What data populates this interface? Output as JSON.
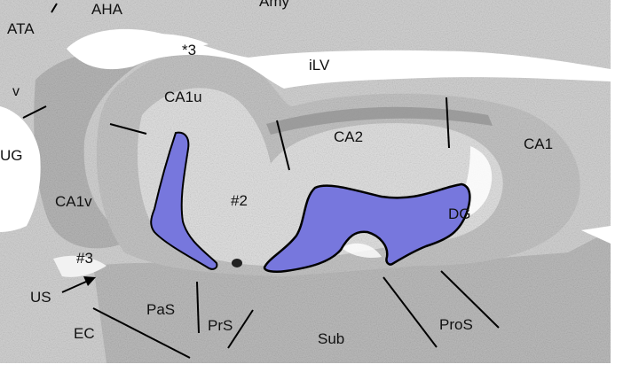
{
  "labels": {
    "aha": "AHA",
    "amy": "Amy",
    "ata": "ATA",
    "ilv": "iLV",
    "star3": "*3",
    "ca1u": "CA1u",
    "ca2": "CA2",
    "ca1": "CA1",
    "ug": "UG",
    "v": "v",
    "ca1v": "CA1v",
    "hash2": "#2",
    "hash3": "#3",
    "dg": "DG",
    "us": "US",
    "ec": "EC",
    "pas": "PaS",
    "prs": "PrS",
    "sub": "Sub",
    "pros": "ProS"
  },
  "colors": {
    "tissue": "#d4d4d4",
    "tissue_dark": "#a9a9a9",
    "ventricle": "#ffffff",
    "dg_fill": "#7777dd",
    "dg_outline": "#000000",
    "line": "#000000"
  }
}
